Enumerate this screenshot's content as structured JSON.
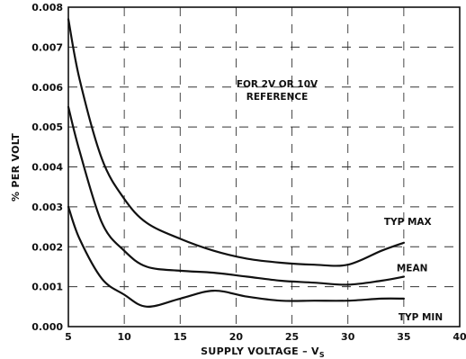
{
  "chart_data": {
    "type": "line",
    "xlabel": "SUPPLY VOLTAGE – V",
    "xlabel_sub": "S",
    "ylabel": "% PER VOLT",
    "xlim": [
      5,
      40
    ],
    "ylim": [
      0,
      0.008
    ],
    "x_ticks": [
      5,
      10,
      15,
      20,
      25,
      30,
      35,
      40
    ],
    "y_ticks": [
      0.0,
      0.001,
      0.002,
      0.003,
      0.004,
      0.005,
      0.006,
      0.007,
      0.008
    ],
    "x_tick_labels": [
      "5",
      "10",
      "15",
      "20",
      "25",
      "30",
      "35",
      "40"
    ],
    "y_tick_labels": [
      "0.000",
      "0.001",
      "0.002",
      "0.003",
      "0.004",
      "0.005",
      "0.006",
      "0.007",
      "0.008"
    ],
    "grid": true,
    "annotation": [
      "FOR 2V OR 10V",
      "REFERENCE"
    ],
    "series": [
      {
        "name": "TYP MAX",
        "x": [
          5,
          6,
          8,
          10,
          12,
          15,
          18,
          21,
          24,
          27,
          30,
          33,
          35
        ],
        "y": [
          0.0077,
          0.0062,
          0.0042,
          0.0032,
          0.0026,
          0.0022,
          0.0019,
          0.0017,
          0.0016,
          0.00155,
          0.00155,
          0.0019,
          0.0021
        ]
      },
      {
        "name": "MEAN",
        "x": [
          5,
          6,
          8,
          10,
          12,
          15,
          18,
          21,
          24,
          27,
          30,
          33,
          35
        ],
        "y": [
          0.0055,
          0.0044,
          0.0026,
          0.0019,
          0.0015,
          0.0014,
          0.00135,
          0.00125,
          0.00115,
          0.0011,
          0.00105,
          0.00115,
          0.00125
        ]
      },
      {
        "name": "TYP MIN",
        "x": [
          5,
          6,
          8,
          10,
          12,
          15,
          18,
          21,
          24,
          27,
          30,
          33,
          35
        ],
        "y": [
          0.003,
          0.0022,
          0.0012,
          0.0008,
          0.0005,
          0.0007,
          0.0009,
          0.00075,
          0.00065,
          0.00065,
          0.00065,
          0.0007,
          0.0007
        ]
      }
    ]
  }
}
